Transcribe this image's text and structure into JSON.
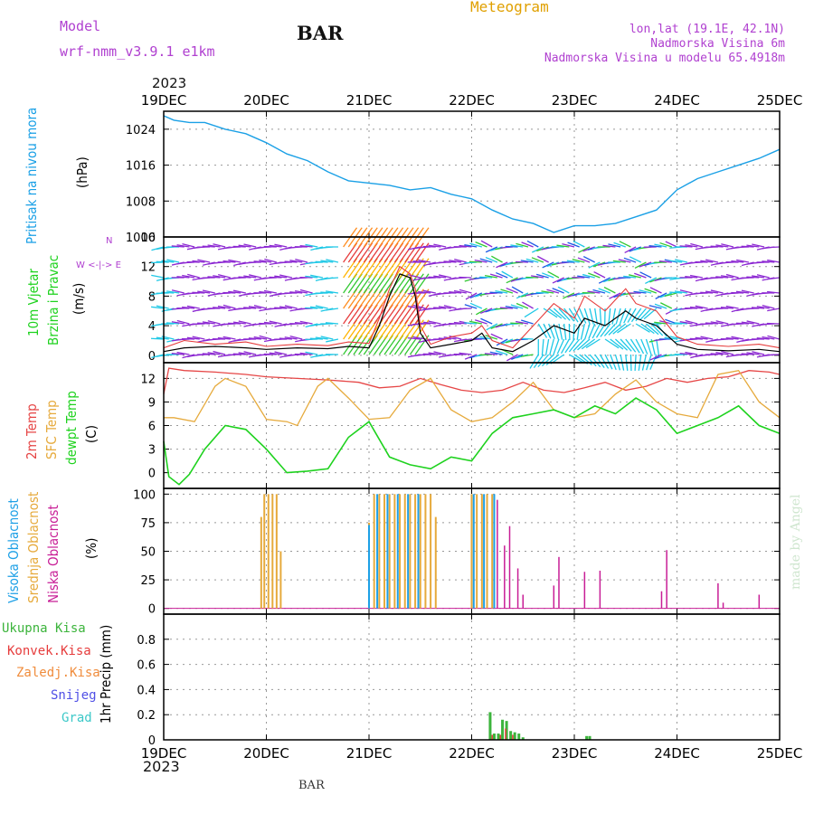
{
  "header": {
    "model_label": "Model",
    "model_name": "wrf-nmm_v3.9.1  e1km",
    "station": "BAR",
    "meteogram": "Meteogram",
    "lonlat": "lon,lat (19.1E, 42.1N)",
    "elevation": "Nadmorska Visina 6m",
    "model_elevation": "Nadmorska Visina u modelu 65.4918m",
    "year_top": "2023",
    "year_bottom": "2023",
    "footer_station": "BAR",
    "watermark": "made by Angel"
  },
  "colors": {
    "pressure": "#1aa0e6",
    "wind_speed": "#000000",
    "gust": "#e63c3c",
    "t2m": "#e64646",
    "tsfc": "#e6aa3c",
    "dewpt": "#1ed21e",
    "cloud_high": "#1ea0e6",
    "cloud_mid": "#e6aa3c",
    "cloud_low": "#c81e96",
    "precip_total": "#3cb43c",
    "precip_conv": "#e63c3c",
    "precip_freeze": "#f08c3c",
    "precip_snow": "#5050e6",
    "precip_graupel": "#3cc8c8"
  },
  "chart_data": [
    {
      "id": "pressure",
      "type": "line",
      "ylabel_lines": [
        "Pritisak na nivou mora",
        "(hPa)"
      ],
      "ylim": [
        1000,
        1028
      ],
      "yticks": [
        1000,
        1008,
        1016,
        1024
      ],
      "x_dates": [
        "19DEC",
        "20DEC",
        "21DEC",
        "22DEC",
        "23DEC",
        "24DEC",
        "25DEC"
      ],
      "grid": true,
      "series": [
        {
          "x": [
            0,
            0.1,
            0.25,
            0.4,
            0.6,
            0.8,
            1.0,
            1.2,
            1.4,
            1.6,
            1.8,
            2.0,
            2.2,
            2.4,
            2.6,
            2.8,
            3.0,
            3.2,
            3.4,
            3.6,
            3.8,
            4.0,
            4.2,
            4.4,
            4.6,
            4.8,
            5.0,
            5.2,
            5.4,
            5.6,
            5.8,
            6.0
          ],
          "y": [
            1027,
            1026,
            1025.5,
            1025.5,
            1024,
            1023,
            1021,
            1018.5,
            1017,
            1014.5,
            1012.5,
            1012,
            1011.5,
            1010.5,
            1011,
            1009.5,
            1008.5,
            1006,
            1004,
            1003,
            1001,
            1002.5,
            1002.5,
            1003,
            1004.5,
            1006,
            1010.5,
            1013,
            1014.5,
            1016,
            1017.5,
            1019.5
          ]
        }
      ]
    },
    {
      "id": "wind",
      "type": "line",
      "ylabel_lines": [
        "10m Vjetar",
        "Brzina i Pravac",
        "(m/s)"
      ],
      "compass": "N",
      "ylim": [
        -1,
        16
      ],
      "yticks": [
        0,
        4,
        8,
        12,
        16
      ],
      "grid": true,
      "series": [
        {
          "name": "speed",
          "x": [
            0,
            0.2,
            0.5,
            0.8,
            1.0,
            1.3,
            1.6,
            1.8,
            2.0,
            2.1,
            2.2,
            2.3,
            2.4,
            2.45,
            2.5,
            2.6,
            2.8,
            3.0,
            3.1,
            3.2,
            3.4,
            3.6,
            3.8,
            4.0,
            4.1,
            4.3,
            4.5,
            4.6,
            4.8,
            5.0,
            5.2,
            5.5,
            5.8,
            6.0
          ],
          "y": [
            0.5,
            1,
            1.2,
            1,
            0.8,
            1,
            0.9,
            1.2,
            1.0,
            4,
            8,
            11,
            10.5,
            8,
            3,
            1,
            1.5,
            2,
            3,
            1,
            0.5,
            2,
            4,
            3,
            5,
            4,
            6,
            5,
            4,
            1.5,
            0.8,
            0.6,
            0.8,
            0.5
          ]
        },
        {
          "name": "gust",
          "x": [
            0,
            0.2,
            0.5,
            0.8,
            1.0,
            1.3,
            1.6,
            1.8,
            2.0,
            2.1,
            2.2,
            2.3,
            2.4,
            2.45,
            2.5,
            2.6,
            2.8,
            3.0,
            3.1,
            3.2,
            3.4,
            3.6,
            3.8,
            4.0,
            4.1,
            4.3,
            4.5,
            4.6,
            4.8,
            5.0,
            5.2,
            5.5,
            5.8,
            6.0
          ],
          "y": [
            1,
            2,
            1.5,
            1.8,
            1.2,
            1.5,
            1.3,
            1.8,
            1.6,
            5,
            9,
            12,
            11,
            9,
            4,
            1.5,
            2.5,
            3,
            4,
            2,
            1,
            4,
            7,
            5,
            8,
            6,
            9,
            7,
            6,
            2.5,
            1.5,
            1.2,
            1.5,
            1
          ]
        }
      ]
    },
    {
      "id": "temperature",
      "type": "line",
      "ylabel_lines": [
        "2m Temp",
        "SFC Temp",
        "dewpt Temp",
        "(C)"
      ],
      "ylim": [
        -2,
        14
      ],
      "yticks": [
        0,
        3,
        6,
        9,
        12
      ],
      "grid": true,
      "series": [
        {
          "name": "2m Temp",
          "x": [
            0,
            0.05,
            0.2,
            0.5,
            0.8,
            1.0,
            1.3,
            1.6,
            1.9,
            2.1,
            2.3,
            2.5,
            2.7,
            2.9,
            3.1,
            3.3,
            3.5,
            3.7,
            3.9,
            4.1,
            4.3,
            4.5,
            4.7,
            4.9,
            5.1,
            5.3,
            5.5,
            5.7,
            5.9,
            6.0
          ],
          "y": [
            10,
            13.3,
            13,
            12.8,
            12.5,
            12.2,
            12,
            11.8,
            11.5,
            10.8,
            11,
            12,
            11.2,
            10.5,
            10.2,
            10.5,
            11.5,
            10.5,
            10.2,
            10.8,
            11.5,
            10.5,
            11,
            12,
            11.5,
            12,
            12.2,
            13,
            12.8,
            12.5
          ]
        },
        {
          "name": "SFC Temp",
          "x": [
            0,
            0.1,
            0.3,
            0.5,
            0.6,
            0.8,
            1.0,
            1.2,
            1.3,
            1.5,
            1.6,
            1.8,
            2.0,
            2.2,
            2.4,
            2.6,
            2.8,
            3.0,
            3.2,
            3.4,
            3.6,
            3.8,
            4.0,
            4.2,
            4.4,
            4.6,
            4.8,
            5.0,
            5.2,
            5.4,
            5.6,
            5.8,
            6.0
          ],
          "y": [
            7,
            7,
            6.5,
            11,
            12,
            11,
            6.8,
            6.5,
            6,
            11,
            12,
            9.5,
            6.8,
            7,
            10.5,
            12,
            8,
            6.5,
            7,
            9,
            11.5,
            8,
            7,
            7.5,
            10,
            11.8,
            9,
            7.5,
            7,
            12.5,
            13,
            9,
            7
          ]
        },
        {
          "name": "dewpt Temp",
          "x": [
            0,
            0.05,
            0.15,
            0.25,
            0.4,
            0.6,
            0.8,
            1.0,
            1.2,
            1.4,
            1.6,
            1.8,
            2.0,
            2.2,
            2.4,
            2.6,
            2.8,
            3.0,
            3.2,
            3.4,
            3.6,
            3.8,
            4.0,
            4.2,
            4.4,
            4.6,
            4.8,
            5.0,
            5.2,
            5.4,
            5.6,
            5.8,
            6.0
          ],
          "y": [
            4,
            -0.5,
            -1.5,
            -0.2,
            3,
            6,
            5.5,
            3,
            0,
            0.2,
            0.5,
            4.5,
            6.5,
            2,
            1,
            0.5,
            2,
            1.5,
            5,
            7,
            7.5,
            8,
            7,
            8.5,
            7.5,
            9.5,
            8,
            5,
            6,
            7,
            8.5,
            6,
            5
          ]
        }
      ]
    },
    {
      "id": "cloud",
      "type": "bar",
      "ylabel_lines": [
        "Visoka Oblacnost",
        "Srednja Oblacnost",
        "Niska Oblacnost",
        "(%)"
      ],
      "ylim": [
        -5,
        105
      ],
      "yticks": [
        0,
        25,
        50,
        75,
        100
      ],
      "grid": true,
      "series": [
        {
          "name": "Srednja Oblacnost",
          "x": [
            0.95,
            0.98,
            1.02,
            1.06,
            1.1,
            1.14,
            2.0,
            2.05,
            2.1,
            2.15,
            2.2,
            2.25,
            2.3,
            2.35,
            2.4,
            2.45,
            2.5,
            2.55,
            2.6,
            2.65,
            3.0,
            3.05,
            3.1,
            3.15,
            3.2
          ],
          "y": [
            80,
            100,
            100,
            100,
            100,
            50,
            75,
            100,
            100,
            100,
            100,
            100,
            100,
            100,
            100,
            100,
            100,
            100,
            100,
            80,
            100,
            100,
            100,
            100,
            100
          ]
        },
        {
          "name": "Visoka Oblacnost",
          "x": [
            2.0,
            2.08,
            2.18,
            2.28,
            2.38,
            2.48,
            3.02,
            3.12,
            3.22
          ],
          "y": [
            73,
            100,
            100,
            100,
            100,
            100,
            100,
            100,
            100
          ]
        },
        {
          "name": "Niska Oblacnost",
          "x": [
            3.25,
            3.32,
            3.37,
            3.45,
            3.5,
            3.8,
            3.85,
            4.1,
            4.25,
            4.85,
            4.9,
            5.4,
            5.45,
            5.8
          ],
          "y": [
            95,
            55,
            72,
            35,
            12,
            20,
            45,
            32,
            33,
            15,
            51,
            22,
            5,
            12
          ]
        }
      ]
    },
    {
      "id": "precip",
      "type": "bar",
      "ylabel_lines": [
        "1hr Precip (mm)"
      ],
      "ylim": [
        0,
        1.0
      ],
      "yticks": [
        0,
        0.2,
        0.4,
        0.6,
        0.8
      ],
      "x_dates": [
        "19DEC",
        "20DEC",
        "21DEC",
        "22DEC",
        "23DEC",
        "24DEC",
        "25DEC"
      ],
      "grid": true,
      "series": [
        {
          "name": "Ukupna Kisa",
          "x": [
            3.18,
            3.22,
            3.26,
            3.3,
            3.34,
            3.38,
            3.42,
            3.46,
            3.5,
            4.12,
            4.15
          ],
          "y": [
            0.22,
            0.05,
            0.05,
            0.16,
            0.15,
            0.07,
            0.06,
            0.05,
            0.02,
            0.03,
            0.03
          ]
        },
        {
          "name": "Konvek.Kisa",
          "x": [
            3.2,
            3.28,
            3.33,
            3.4
          ],
          "y": [
            0.04,
            0.04,
            0.09,
            0.04
          ]
        },
        {
          "name": "Zaledj.Kisa",
          "x": [],
          "y": []
        },
        {
          "name": "Snijeg",
          "x": [],
          "y": []
        },
        {
          "name": "Grad",
          "x": [],
          "y": []
        }
      ]
    }
  ]
}
